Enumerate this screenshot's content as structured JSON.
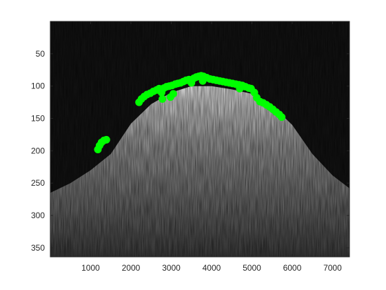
{
  "chart_data": {
    "type": "scatter",
    "background": "grayscale image",
    "title": "",
    "xlabel": "",
    "ylabel": "",
    "xlim": [
      0,
      7420
    ],
    "ylim": [
      364,
      0
    ],
    "y_reversed": true,
    "grid": false,
    "legend": "none",
    "x_ticks": [
      1000,
      2000,
      3000,
      4000,
      5000,
      6000,
      7000
    ],
    "x_tick_labels": [
      "1000",
      "2000",
      "3000",
      "4000",
      "5000",
      "6000",
      "7000"
    ],
    "y_ticks": [
      50,
      100,
      150,
      200,
      250,
      300,
      350
    ],
    "y_tick_labels": [
      "50",
      "100",
      "150",
      "200",
      "250",
      "300",
      "350"
    ],
    "colors": {
      "marker": "#00ff00",
      "plot_background": "#111111",
      "axis_box": "#262626"
    },
    "image_profile": [
      {
        "x": 0,
        "y": 265
      },
      {
        "x": 500,
        "y": 250
      },
      {
        "x": 1000,
        "y": 230
      },
      {
        "x": 1500,
        "y": 205
      },
      {
        "x": 2000,
        "y": 158
      },
      {
        "x": 2500,
        "y": 128
      },
      {
        "x": 3000,
        "y": 110
      },
      {
        "x": 3500,
        "y": 100
      },
      {
        "x": 4000,
        "y": 100
      },
      {
        "x": 4500,
        "y": 105
      },
      {
        "x": 5000,
        "y": 112
      },
      {
        "x": 5500,
        "y": 130
      },
      {
        "x": 6000,
        "y": 160
      },
      {
        "x": 6500,
        "y": 205
      },
      {
        "x": 7000,
        "y": 238
      },
      {
        "x": 7420,
        "y": 258
      }
    ],
    "series": [
      {
        "marker": "circle",
        "points": [
          {
            "x": 1180,
            "y": 198
          },
          {
            "x": 1220,
            "y": 192
          },
          {
            "x": 1270,
            "y": 187
          },
          {
            "x": 1330,
            "y": 184
          },
          {
            "x": 1390,
            "y": 183
          },
          {
            "x": 2200,
            "y": 125
          },
          {
            "x": 2260,
            "y": 120
          },
          {
            "x": 2330,
            "y": 116
          },
          {
            "x": 2400,
            "y": 113
          },
          {
            "x": 2480,
            "y": 111
          },
          {
            "x": 2560,
            "y": 108
          },
          {
            "x": 2640,
            "y": 106
          },
          {
            "x": 2700,
            "y": 104
          },
          {
            "x": 2760,
            "y": 110
          },
          {
            "x": 2780,
            "y": 120
          },
          {
            "x": 2820,
            "y": 103
          },
          {
            "x": 2880,
            "y": 101
          },
          {
            "x": 2950,
            "y": 100
          },
          {
            "x": 2980,
            "y": 117
          },
          {
            "x": 3020,
            "y": 99
          },
          {
            "x": 3050,
            "y": 112
          },
          {
            "x": 3100,
            "y": 97
          },
          {
            "x": 3160,
            "y": 96
          },
          {
            "x": 3230,
            "y": 95
          },
          {
            "x": 3300,
            "y": 93
          },
          {
            "x": 3370,
            "y": 91
          },
          {
            "x": 3440,
            "y": 90
          },
          {
            "x": 3500,
            "y": 95
          },
          {
            "x": 3560,
            "y": 88
          },
          {
            "x": 3620,
            "y": 86
          },
          {
            "x": 3680,
            "y": 85
          },
          {
            "x": 3740,
            "y": 84
          },
          {
            "x": 3780,
            "y": 92
          },
          {
            "x": 3800,
            "y": 85
          },
          {
            "x": 3880,
            "y": 87
          },
          {
            "x": 3960,
            "y": 89
          },
          {
            "x": 4040,
            "y": 90
          },
          {
            "x": 4120,
            "y": 91
          },
          {
            "x": 4200,
            "y": 92
          },
          {
            "x": 4280,
            "y": 93
          },
          {
            "x": 4360,
            "y": 94
          },
          {
            "x": 4440,
            "y": 95
          },
          {
            "x": 4520,
            "y": 96
          },
          {
            "x": 4600,
            "y": 97
          },
          {
            "x": 4680,
            "y": 98
          },
          {
            "x": 4700,
            "y": 104
          },
          {
            "x": 4760,
            "y": 99
          },
          {
            "x": 4840,
            "y": 101
          },
          {
            "x": 4920,
            "y": 103
          },
          {
            "x": 4980,
            "y": 104
          },
          {
            "x": 5060,
            "y": 110
          },
          {
            "x": 5120,
            "y": 118
          },
          {
            "x": 5200,
            "y": 124
          },
          {
            "x": 5280,
            "y": 126
          },
          {
            "x": 5360,
            "y": 129
          },
          {
            "x": 5440,
            "y": 132
          },
          {
            "x": 5520,
            "y": 136
          },
          {
            "x": 5600,
            "y": 140
          },
          {
            "x": 5680,
            "y": 144
          },
          {
            "x": 5740,
            "y": 148
          }
        ]
      }
    ]
  }
}
